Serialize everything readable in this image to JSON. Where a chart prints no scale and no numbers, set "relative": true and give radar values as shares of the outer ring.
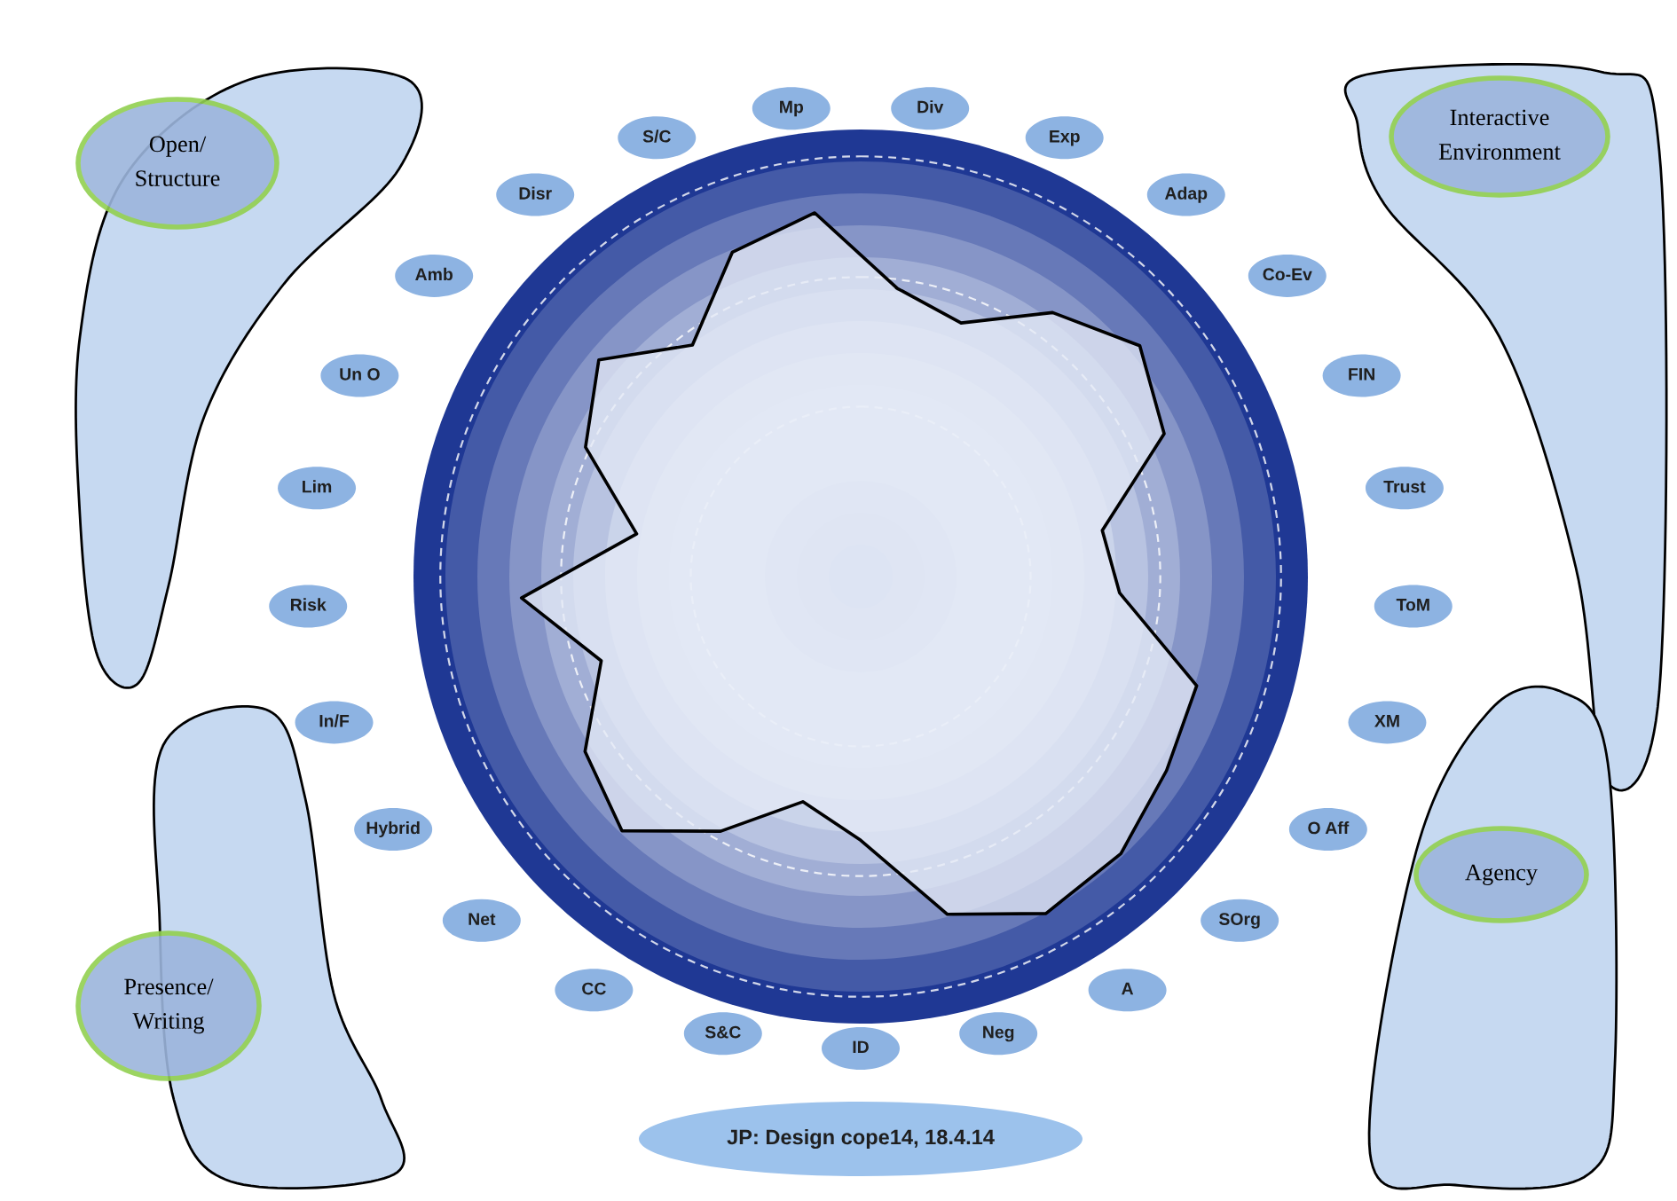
{
  "chart_data": {
    "type": "radar",
    "relative": true,
    "title": "JP: Design cope14, 18.4.14",
    "categories": [
      "Div",
      "Exp",
      "Adap",
      "Co-Ev",
      "FIN",
      "Trust",
      "ToM",
      "XM",
      "O Aff",
      "SOrg",
      "A",
      "Neg",
      "ID",
      "S&C",
      "CC",
      "Net",
      "Hybrid",
      "In/F",
      "Risk",
      "Lim",
      "Un O",
      "Amb",
      "Disr",
      "S/C",
      "Mp"
    ],
    "series": [
      {
        "color": "#000000",
        "values": [
          0.65,
          0.61,
          0.73,
          0.81,
          0.75,
          0.55,
          0.58,
          0.79,
          0.81,
          0.85,
          0.86,
          0.78,
          0.59,
          0.52,
          0.65,
          0.78,
          0.73,
          0.61,
          0.76,
          0.51,
          0.68,
          0.76,
          0.64,
          0.78,
          0.82
        ]
      }
    ],
    "annotations": [
      "Open/ Structure",
      "Interactive Environment",
      "Presence/ Writing",
      "Agency"
    ]
  }
}
